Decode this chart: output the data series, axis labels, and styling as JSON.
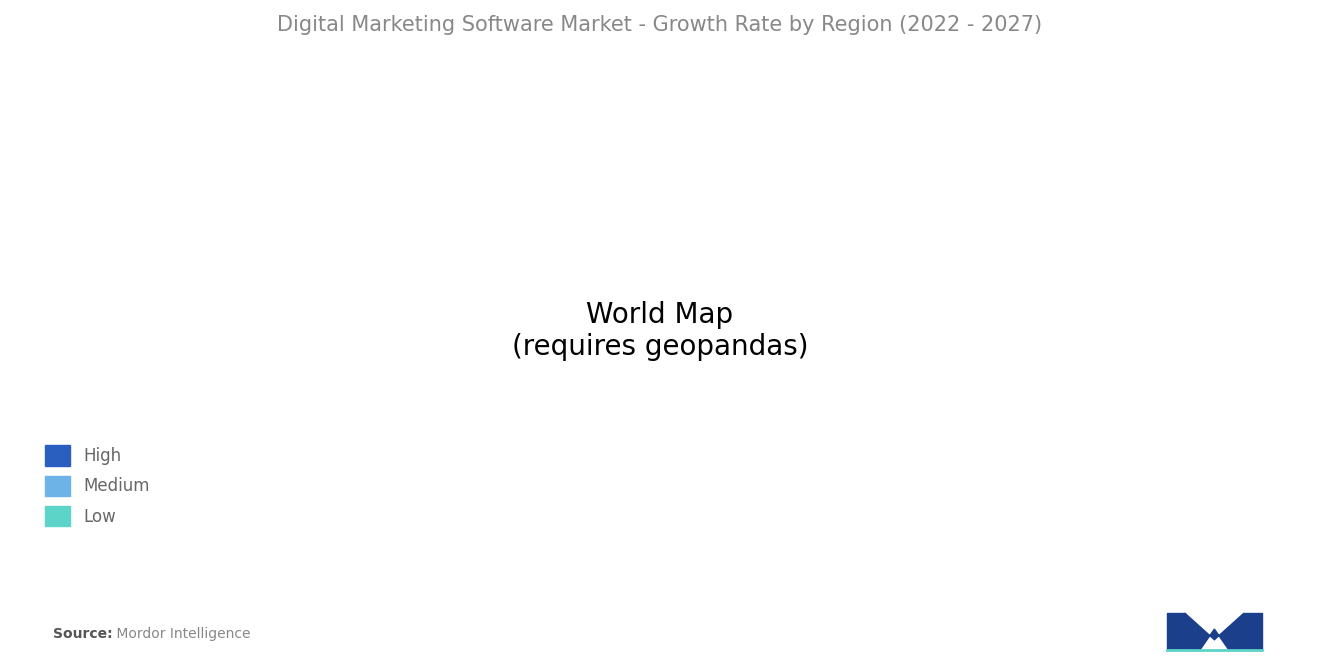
{
  "title": "Digital Marketing Software Market - Growth Rate by Region (2022 - 2027)",
  "title_color": "#888888",
  "title_fontsize": 15,
  "legend_items": [
    {
      "label": "High",
      "color": "#2B5FBF"
    },
    {
      "label": "Medium",
      "color": "#6DB3E8"
    },
    {
      "label": "Low",
      "color": "#5DD4C8"
    }
  ],
  "source_text": "Source:",
  "source_detail": " Mordor Intelligence",
  "background_color": "#FFFFFF",
  "ocean_color": "#FFFFFF",
  "no_data_color": "#AAAAAA",
  "high_color": "#2B5FBF",
  "medium_color": "#6DB3E8",
  "low_color": "#5DD4C8",
  "region_colors": {
    "North America": "medium",
    "South America": "low",
    "Europe": "medium",
    "Russia": "no_data",
    "Middle East Africa": "low",
    "South Asia": "high",
    "East Asia": "high",
    "Southeast Asia": "high",
    "Australia": "high",
    "Japan": "medium",
    "Central Asia": "no_data"
  }
}
